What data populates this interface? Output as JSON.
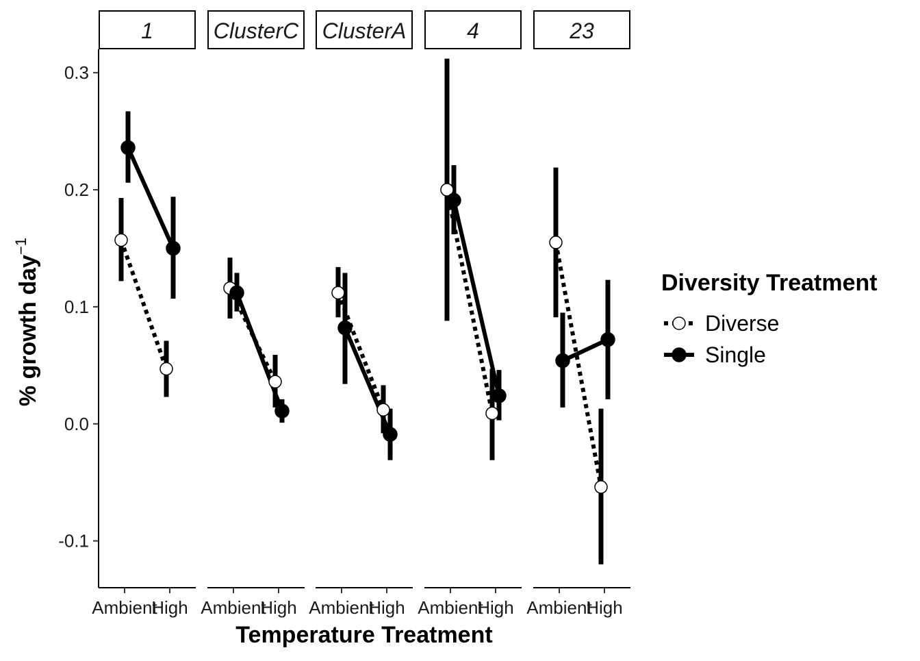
{
  "chart_data": {
    "type": "line",
    "facet_labels": [
      "1",
      "ClusterC",
      "ClusterA",
      "4",
      "23"
    ],
    "categories": [
      "Ambient",
      "High"
    ],
    "xlabel": "Temperature Treatment",
    "ylabel_main": "% growth day",
    "ylabel_superscript": "−1",
    "ylim": [
      -0.14,
      0.32
    ],
    "yticks": [
      -0.1,
      0.0,
      0.1,
      0.2,
      0.3
    ],
    "ytick_labels": [
      "-0.1",
      "0.0",
      "0.1",
      "0.2",
      "0.3"
    ],
    "grid": false,
    "legend": {
      "title": "Diversity Treatment",
      "position": "right",
      "entries": [
        "Diverse",
        "Single"
      ]
    },
    "series": [
      {
        "name": "Diverse",
        "marker": "open-circle",
        "linestyle": "dotted",
        "facets": [
          {
            "facet": "1",
            "values": [
              0.157,
              0.047
            ],
            "lower": [
              0.122,
              0.023
            ],
            "upper": [
              0.193,
              0.071
            ]
          },
          {
            "facet": "ClusterC",
            "values": [
              0.116,
              0.036
            ],
            "lower": [
              0.09,
              0.014
            ],
            "upper": [
              0.142,
              0.059
            ]
          },
          {
            "facet": "ClusterA",
            "values": [
              0.112,
              0.012
            ],
            "lower": [
              0.091,
              -0.008
            ],
            "upper": [
              0.134,
              0.033
            ]
          },
          {
            "facet": "4",
            "values": [
              0.2,
              0.009
            ],
            "lower": [
              0.088,
              -0.031
            ],
            "upper": [
              0.312,
              0.047
            ]
          },
          {
            "facet": "23",
            "values": [
              0.155,
              -0.054
            ],
            "lower": [
              0.091,
              -0.12
            ],
            "upper": [
              0.219,
              0.013
            ]
          }
        ]
      },
      {
        "name": "Single",
        "marker": "filled-circle",
        "linestyle": "solid",
        "facets": [
          {
            "facet": "1",
            "values": [
              0.236,
              0.15
            ],
            "lower": [
              0.206,
              0.107
            ],
            "upper": [
              0.267,
              0.194
            ]
          },
          {
            "facet": "ClusterC",
            "values": [
              0.112,
              0.011
            ],
            "lower": [
              0.096,
              0.001
            ],
            "upper": [
              0.129,
              0.021
            ]
          },
          {
            "facet": "ClusterA",
            "values": [
              0.082,
              -0.009
            ],
            "lower": [
              0.034,
              -0.031
            ],
            "upper": [
              0.129,
              0.013
            ]
          },
          {
            "facet": "4",
            "values": [
              0.191,
              0.024
            ],
            "lower": [
              0.162,
              0.003
            ],
            "upper": [
              0.221,
              0.046
            ]
          },
          {
            "facet": "23",
            "values": [
              0.054,
              0.072
            ],
            "lower": [
              0.014,
              0.021
            ],
            "upper": [
              0.095,
              0.123
            ]
          }
        ]
      }
    ]
  }
}
